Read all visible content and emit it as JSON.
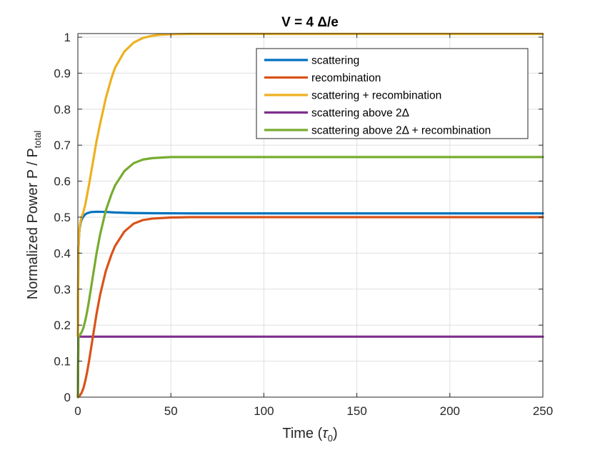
{
  "chart_data": {
    "type": "line",
    "title": "V = 4 Δ/e",
    "xlabel": {
      "main": "Time (",
      "symbol": "τ",
      "sub": "0",
      "close": ")"
    },
    "ylabel": {
      "main": "Normalized Power P / P",
      "sub": "total"
    },
    "xlim": [
      0,
      250
    ],
    "ylim": [
      0,
      1.01
    ],
    "xticks": [
      0,
      50,
      100,
      150,
      200,
      250
    ],
    "xtick_labels": [
      "0",
      "50",
      "100",
      "150",
      "200",
      "250"
    ],
    "yticks": [
      0,
      0.1,
      0.2,
      0.3,
      0.4,
      0.5,
      0.6,
      0.7,
      0.8,
      0.9,
      1
    ],
    "ytick_labels": [
      "0",
      "0.1",
      "0.2",
      "0.3",
      "0.4",
      "0.5",
      "0.6",
      "0.7",
      "0.8",
      "0.9",
      "1"
    ],
    "grid": true,
    "legend_position": "top-right",
    "series": [
      {
        "name": "scattering",
        "color": "#0072BD",
        "x": [
          0,
          0.3,
          0.7,
          1,
          1.5,
          2,
          3,
          4,
          5,
          7,
          10,
          15,
          20,
          30,
          40,
          60,
          100,
          150,
          200,
          250
        ],
        "y": [
          0.17,
          0.41,
          0.455,
          0.47,
          0.485,
          0.493,
          0.502,
          0.508,
          0.511,
          0.514,
          0.515,
          0.5145,
          0.513,
          0.5115,
          0.511,
          0.5105,
          0.5105,
          0.5105,
          0.5105,
          0.5105
        ]
      },
      {
        "name": "recombination",
        "color": "#D95319",
        "x": [
          0,
          1,
          2,
          3,
          4,
          5,
          6,
          8,
          10,
          12,
          15,
          18,
          20,
          25,
          30,
          35,
          40,
          50,
          60,
          80,
          100,
          150,
          200,
          250
        ],
        "y": [
          0,
          0.004,
          0.012,
          0.025,
          0.045,
          0.07,
          0.1,
          0.165,
          0.23,
          0.285,
          0.35,
          0.395,
          0.42,
          0.46,
          0.482,
          0.492,
          0.496,
          0.499,
          0.5,
          0.5,
          0.5,
          0.5,
          0.5,
          0.5
        ]
      },
      {
        "name": "scattering + recombination",
        "color": "#EDB120",
        "x": [
          0,
          0.3,
          0.7,
          1,
          1.5,
          2,
          3,
          4,
          6,
          8,
          10,
          12,
          15,
          18,
          20,
          25,
          30,
          35,
          40,
          45,
          50,
          60,
          80,
          100,
          150,
          200,
          250
        ],
        "y": [
          0.17,
          0.41,
          0.455,
          0.475,
          0.49,
          0.5,
          0.515,
          0.535,
          0.59,
          0.65,
          0.71,
          0.76,
          0.83,
          0.885,
          0.915,
          0.96,
          0.985,
          0.998,
          1.004,
          1.007,
          1.008,
          1.009,
          1.009,
          1.009,
          1.009,
          1.009,
          1.009
        ]
      },
      {
        "name": "scattering above 2Δ",
        "color": "#7E2F8E",
        "x": [
          0,
          0.3,
          1,
          5,
          50,
          100,
          150,
          200,
          250
        ],
        "y": [
          0,
          0.168,
          0.168,
          0.168,
          0.168,
          0.168,
          0.168,
          0.168,
          0.168
        ]
      },
      {
        "name": "scattering above 2Δ + recombination",
        "color": "#77AC30",
        "x": [
          0,
          0.3,
          1,
          2,
          3,
          4,
          5,
          6,
          8,
          10,
          12,
          15,
          18,
          20,
          25,
          30,
          35,
          40,
          50,
          60,
          80,
          100,
          150,
          200,
          250
        ],
        "y": [
          0,
          0.168,
          0.172,
          0.18,
          0.193,
          0.213,
          0.238,
          0.268,
          0.333,
          0.398,
          0.453,
          0.518,
          0.563,
          0.588,
          0.628,
          0.65,
          0.66,
          0.664,
          0.667,
          0.667,
          0.667,
          0.667,
          0.667,
          0.667,
          0.667
        ]
      }
    ]
  }
}
